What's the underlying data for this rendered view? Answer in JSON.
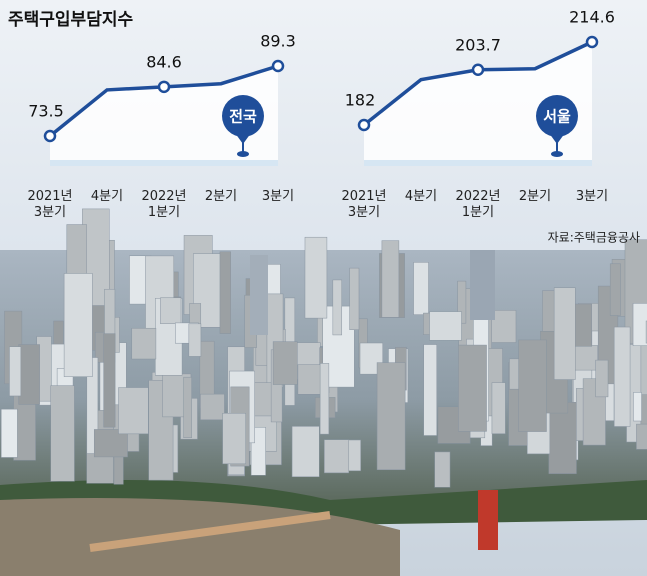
{
  "chart_data": [
    {
      "type": "line",
      "title": "주택구입부담지수",
      "categories": [
        "2021년\n3분기",
        "4분기",
        "2022년\n1분기",
        "2분기",
        "3분기"
      ],
      "series": [
        {
          "name": "전국",
          "color": "#1f4e9a",
          "values": [
            73.5,
            83.9,
            84.6,
            85.3,
            89.3
          ]
        }
      ],
      "value_labels": [
        "73.5",
        null,
        "84.6",
        null,
        "89.3"
      ]
    },
    {
      "type": "line",
      "categories": [
        "2021년\n3분기",
        "4분기",
        "2022년\n1분기",
        "2분기",
        "3분기"
      ],
      "series": [
        {
          "name": "서울",
          "color": "#1f4e9a",
          "values": [
            182,
            199.8,
            203.7,
            204.1,
            214.6
          ]
        }
      ],
      "value_labels": [
        "182",
        null,
        "203.7",
        null,
        "214.6"
      ]
    }
  ],
  "source": "자료:주택금융공사"
}
